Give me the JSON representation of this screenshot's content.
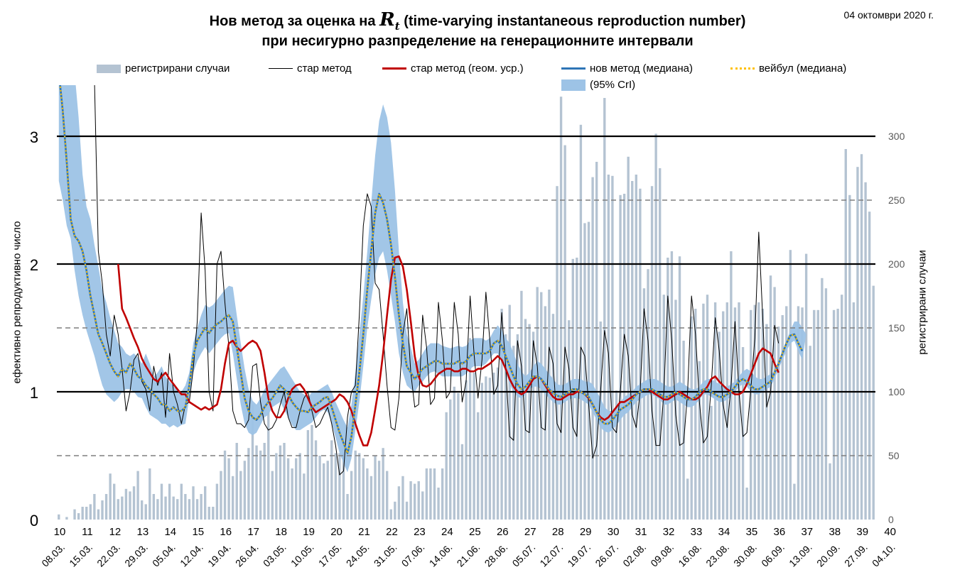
{
  "header": {
    "title_prefix": "Нов метод за оценка на",
    "title_rt": "R",
    "title_rt_sub": "t",
    "title_suffix": "(time-varying instantaneous reproduction number)",
    "title_line2": "при несигурно разпределение на генерационните интервали",
    "date": "04 октомври 2020 г."
  },
  "legend": {
    "cases": "регистрирани случаи",
    "old": "стар метод",
    "old_geo": "стар метод (геом. уср.)",
    "new_median": "нов метод (медиана)",
    "weibull": "вейбул (медиана)",
    "cri": "(95% CrI)"
  },
  "colors": {
    "bars": "#b4c3d2",
    "band": "#9dc3e6",
    "old": "#000000",
    "old_geo": "#c00000",
    "new": "#2e75b6",
    "weibull": "#ffc000"
  },
  "chart_data": {
    "type": "bar+line",
    "title": "Нов метод за оценка на Rt (time-varying instantaneous reproduction number) при несигурно разпределение на генерационните интервали",
    "ylabel_left": "ефективно репродуктивно число",
    "ylabel_right": "регистрирани случаи",
    "ylim_left": [
      0,
      3.4
    ],
    "ylim_right": [
      0,
      340
    ],
    "yticks_left": [
      "0",
      "1",
      "2",
      "3"
    ],
    "yticks_right": [
      "0",
      "50",
      "100",
      "150",
      "200",
      "250",
      "300"
    ],
    "week_labels": [
      "10",
      "11",
      "12",
      "13",
      "14",
      "15",
      "16",
      "17",
      "18",
      "19",
      "20",
      "21",
      "22",
      "23",
      "24",
      "25",
      "26",
      "27",
      "28",
      "29",
      "30",
      "31",
      "32",
      "33",
      "34",
      "35",
      "36",
      "37",
      "38",
      "39",
      "40"
    ],
    "date_labels": [
      "08.03.",
      "15.03.",
      "22.03.",
      "29.03.",
      "05.04.",
      "12.04.",
      "19.04.",
      "26.04.",
      "03.05.",
      "10.05.",
      "17.05.",
      "24.05.",
      "31.05.",
      "07.06.",
      "14.06.",
      "21.06.",
      "28.06.",
      "05.07.",
      "12.07.",
      "19.07.",
      "26.07.",
      "02.08.",
      "09.08.",
      "16.08.",
      "23.08.",
      "30.08.",
      "06.09.",
      "13.09.",
      "20.09.",
      "27.09.",
      "04.10."
    ],
    "cases": [
      4,
      0,
      2,
      0,
      8,
      5,
      10,
      10,
      12,
      20,
      8,
      15,
      20,
      36,
      28,
      16,
      18,
      24,
      22,
      26,
      38,
      15,
      12,
      40,
      20,
      16,
      28,
      18,
      28,
      18,
      16,
      28,
      20,
      16,
      26,
      16,
      20,
      26,
      10,
      10,
      28,
      38,
      54,
      48,
      34,
      60,
      38,
      46,
      56,
      90,
      58,
      54,
      60,
      84,
      38,
      52,
      58,
      60,
      48,
      40,
      48,
      52,
      36,
      70,
      74,
      62,
      50,
      44,
      46,
      62,
      52,
      52,
      56,
      20,
      38,
      54,
      52,
      48,
      40,
      34,
      50,
      46,
      56,
      38,
      8,
      14,
      26,
      34,
      14,
      30,
      28,
      30,
      22,
      40,
      40,
      40,
      25,
      40,
      84,
      94,
      104,
      99,
      59,
      109,
      142,
      115,
      84,
      107,
      112,
      111,
      115,
      119,
      165,
      145,
      168,
      136,
      145,
      179,
      157,
      153,
      147,
      182,
      178,
      167,
      180,
      161,
      261,
      331,
      293,
      156,
      204,
      205,
      309,
      232,
      233,
      268,
      280,
      155,
      330,
      270,
      269,
      101,
      254,
      255,
      284,
      265,
      270,
      259,
      181,
      196,
      261,
      302,
      275,
      176,
      205,
      210,
      172,
      206,
      140,
      32,
      159,
      165,
      124,
      169,
      176,
      89,
      170,
      147,
      163,
      170,
      210,
      166,
      170,
      135,
      25,
      164,
      168,
      170,
      165,
      153,
      191,
      182,
      151,
      160,
      167,
      211,
      28,
      167,
      166,
      208,
      136,
      164,
      164,
      189,
      181,
      44,
      164,
      165,
      176,
      290,
      254,
      170,
      276,
      286,
      264,
      241,
      183
    ],
    "band_upper": [
      3.5,
      3.5,
      3.5,
      3.5,
      3.5,
      3.15,
      2.7,
      2.45,
      2.35,
      2.15,
      1.98,
      1.8,
      1.7,
      1.58,
      1.48,
      1.38,
      1.35,
      1.3,
      1.28,
      1.3,
      1.27,
      1.22,
      1.3,
      1.22,
      1.12,
      1.15,
      1.2,
      1.12,
      1.08,
      1.05,
      1.02,
      1.0,
      1.05,
      1.15,
      1.38,
      1.5,
      1.6,
      1.68,
      1.66,
      1.68,
      1.72,
      1.76,
      1.8,
      1.83,
      1.82,
      1.6,
      1.38,
      1.18,
      1.02,
      0.93,
      0.9,
      0.95,
      1.02,
      1.06,
      1.1,
      1.14,
      1.18,
      1.2,
      1.15,
      1.1,
      1.05,
      1.0,
      0.98,
      0.95,
      1.0,
      1.0,
      1.02,
      1.04,
      1.06,
      1.0,
      0.92,
      0.85,
      0.78,
      0.72,
      0.9,
      1.15,
      1.45,
      1.75,
      2.1,
      2.48,
      2.85,
      3.12,
      3.25,
      3.15,
      2.95,
      2.58,
      2.1,
      1.7,
      1.45,
      1.35,
      1.22,
      1.25,
      1.3,
      1.35,
      1.38,
      1.38,
      1.38,
      1.36,
      1.35,
      1.34,
      1.35,
      1.36,
      1.35,
      1.36,
      1.4,
      1.42,
      1.42,
      1.42,
      1.4,
      1.42,
      1.48,
      1.52,
      1.48,
      1.42,
      1.38,
      1.3,
      1.22,
      1.16,
      1.12,
      1.15,
      1.2,
      1.24,
      1.22,
      1.18,
      1.14,
      1.1,
      1.06,
      1.05,
      1.06,
      1.08,
      1.1,
      1.1,
      1.1,
      1.08,
      1.08,
      1.06,
      1.0,
      0.95,
      0.88,
      0.85,
      0.85,
      0.88,
      0.92,
      0.96,
      0.98,
      1.0,
      1.04,
      1.06,
      1.08,
      1.1,
      1.1,
      1.1,
      1.08,
      1.06,
      1.04,
      1.04,
      1.06,
      1.08,
      1.06,
      1.04,
      1.02,
      1.02,
      1.04,
      1.08,
      1.1,
      1.1,
      1.08,
      1.06,
      1.04,
      1.04,
      1.06,
      1.08,
      1.12,
      1.16,
      1.18,
      1.16,
      1.12,
      1.1,
      1.1,
      1.12,
      1.14,
      1.16,
      1.24,
      1.32,
      1.4,
      1.48,
      1.55,
      1.55,
      1.5,
      1.45
    ],
    "band_lower": [
      2.65,
      2.5,
      2.3,
      2.2,
      1.95,
      1.75,
      1.6,
      1.48,
      1.38,
      1.28,
      1.16,
      1.05,
      0.98,
      0.95,
      0.92,
      0.95,
      1.0,
      1.02,
      1.02,
      1.0,
      0.96,
      0.95,
      0.88,
      0.82,
      0.8,
      0.78,
      0.75,
      0.75,
      0.72,
      0.74,
      0.72,
      0.74,
      0.75,
      0.95,
      1.15,
      1.24,
      1.3,
      1.35,
      1.3,
      1.34,
      1.38,
      1.42,
      1.45,
      1.46,
      1.3,
      1.1,
      0.9,
      0.75,
      0.68,
      0.66,
      0.68,
      0.74,
      0.8,
      0.82,
      0.88,
      0.9,
      0.92,
      0.86,
      0.8,
      0.74,
      0.7,
      0.7,
      0.72,
      0.74,
      0.76,
      0.8,
      0.84,
      0.86,
      0.84,
      0.76,
      0.64,
      0.52,
      0.44,
      0.37,
      0.48,
      0.7,
      0.92,
      1.2,
      1.5,
      1.72,
      1.92,
      2.05,
      2.1,
      1.95,
      1.75,
      1.55,
      1.3,
      1.15,
      1.05,
      1.02,
      1.0,
      1.05,
      1.08,
      1.12,
      1.15,
      1.16,
      1.14,
      1.12,
      1.12,
      1.12,
      1.12,
      1.12,
      1.12,
      1.14,
      1.18,
      1.2,
      1.2,
      1.2,
      1.22,
      1.26,
      1.3,
      1.3,
      1.24,
      1.15,
      1.06,
      1.0,
      0.96,
      0.95,
      0.98,
      1.02,
      1.04,
      1.04,
      1.02,
      0.98,
      0.95,
      0.92,
      0.9,
      0.9,
      0.92,
      0.94,
      0.95,
      0.95,
      0.94,
      0.92,
      0.9,
      0.84,
      0.78,
      0.72,
      0.69,
      0.68,
      0.7,
      0.74,
      0.78,
      0.82,
      0.84,
      0.88,
      0.92,
      0.94,
      0.96,
      0.98,
      0.98,
      0.96,
      0.94,
      0.9,
      0.9,
      0.92,
      0.94,
      0.92,
      0.9,
      0.88,
      0.88,
      0.9,
      0.94,
      0.98,
      0.98,
      0.96,
      0.94,
      0.92,
      0.92,
      0.94,
      0.96,
      1.0,
      1.04,
      1.06,
      1.04,
      1.0,
      0.98,
      0.98,
      1.0,
      1.02,
      1.04,
      1.1,
      1.18,
      1.25,
      1.32,
      1.38,
      1.4,
      1.32,
      1.25
    ],
    "new_median": [
      3.5,
      3.2,
      2.8,
      2.35,
      2.22,
      2.18,
      2.1,
      1.95,
      1.75,
      1.6,
      1.45,
      1.38,
      1.3,
      1.22,
      1.16,
      1.12,
      1.18,
      1.15,
      1.22,
      1.18,
      1.12,
      1.1,
      1.05,
      1.02,
      0.98,
      0.95,
      0.9,
      0.9,
      0.85,
      0.88,
      0.85,
      0.85,
      0.88,
      1.05,
      1.28,
      1.4,
      1.45,
      1.5,
      1.46,
      1.5,
      1.53,
      1.55,
      1.58,
      1.6,
      1.55,
      1.35,
      1.15,
      0.95,
      0.85,
      0.8,
      0.78,
      0.82,
      0.88,
      0.92,
      0.95,
      1.0,
      1.05,
      1.02,
      0.98,
      0.92,
      0.88,
      0.85,
      0.85,
      0.84,
      0.88,
      0.9,
      0.92,
      0.95,
      0.96,
      0.88,
      0.78,
      0.68,
      0.6,
      0.52,
      0.65,
      0.9,
      1.15,
      1.45,
      1.8,
      2.1,
      2.4,
      2.55,
      2.48,
      2.35,
      2.15,
      1.9,
      1.6,
      1.38,
      1.2,
      1.15,
      1.1,
      1.14,
      1.18,
      1.2,
      1.22,
      1.24,
      1.24,
      1.22,
      1.22,
      1.22,
      1.22,
      1.24,
      1.22,
      1.24,
      1.28,
      1.3,
      1.3,
      1.3,
      1.3,
      1.32,
      1.38,
      1.4,
      1.36,
      1.28,
      1.2,
      1.12,
      1.06,
      1.02,
      1.04,
      1.08,
      1.12,
      1.12,
      1.1,
      1.06,
      1.02,
      0.99,
      0.97,
      0.96,
      0.98,
      1.0,
      1.02,
      1.02,
      1.0,
      0.98,
      0.96,
      0.9,
      0.84,
      0.78,
      0.75,
      0.75,
      0.78,
      0.82,
      0.86,
      0.88,
      0.9,
      0.94,
      0.98,
      1.0,
      1.02,
      1.02,
      1.02,
      1.0,
      0.98,
      0.96,
      0.96,
      0.98,
      1.0,
      0.98,
      0.96,
      0.94,
      0.94,
      0.96,
      1.0,
      1.02,
      1.02,
      1.0,
      0.98,
      0.96,
      0.96,
      0.98,
      1.0,
      1.04,
      1.08,
      1.1,
      1.08,
      1.05,
      1.02,
      1.02,
      1.04,
      1.06,
      1.08,
      1.15,
      1.22,
      1.3,
      1.38,
      1.44,
      1.45,
      1.38,
      1.32
    ],
    "old_geo": [
      null,
      null,
      null,
      null,
      null,
      null,
      null,
      null,
      null,
      null,
      null,
      null,
      null,
      null,
      null,
      2.0,
      1.65,
      1.58,
      1.5,
      1.42,
      1.35,
      1.26,
      1.2,
      1.15,
      1.1,
      1.08,
      1.12,
      1.15,
      1.1,
      1.06,
      1.02,
      0.98,
      0.98,
      0.92,
      0.9,
      0.88,
      0.86,
      0.88,
      0.86,
      0.88,
      0.9,
      1.02,
      1.22,
      1.38,
      1.4,
      1.35,
      1.32,
      1.35,
      1.38,
      1.4,
      1.38,
      1.32,
      1.15,
      0.95,
      0.85,
      0.8,
      0.8,
      0.85,
      0.95,
      1.02,
      1.05,
      1.06,
      1.02,
      0.95,
      0.88,
      0.84,
      0.86,
      0.88,
      0.9,
      0.92,
      0.94,
      0.98,
      0.96,
      0.92,
      0.85,
      0.75,
      0.66,
      0.58,
      0.58,
      0.68,
      0.86,
      1.05,
      1.3,
      1.6,
      1.88,
      2.05,
      2.06,
      1.98,
      1.8,
      1.55,
      1.28,
      1.12,
      1.05,
      1.04,
      1.06,
      1.1,
      1.14,
      1.16,
      1.18,
      1.18,
      1.16,
      1.16,
      1.18,
      1.18,
      1.16,
      1.16,
      1.18,
      1.18,
      1.2,
      1.22,
      1.25,
      1.28,
      1.25,
      1.18,
      1.1,
      1.04,
      1.0,
      0.98,
      1.0,
      1.05,
      1.1,
      1.12,
      1.1,
      1.05,
      1.0,
      0.96,
      0.94,
      0.94,
      0.96,
      0.98,
      0.98,
      1.0,
      1.0,
      0.98,
      0.95,
      0.9,
      0.84,
      0.8,
      0.78,
      0.8,
      0.84,
      0.88,
      0.92,
      0.92,
      0.94,
      0.96,
      0.98,
      1.0,
      1.02,
      1.02,
      1.0,
      0.98,
      0.96,
      0.94,
      0.94,
      0.96,
      0.98,
      1.0,
      0.98,
      0.96,
      0.94,
      0.94,
      0.96,
      1.0,
      1.04,
      1.1,
      1.12,
      1.08,
      1.05,
      1.02,
      1.0,
      0.98,
      0.98,
      1.0,
      1.06,
      1.14,
      1.22,
      1.3,
      1.34,
      1.32,
      1.3,
      1.22,
      1.15
    ],
    "old_method": [
      null,
      null,
      null,
      null,
      null,
      null,
      null,
      null,
      null,
      3.45,
      2.1,
      1.85,
      1.45,
      1.28,
      1.6,
      1.45,
      1.18,
      0.85,
      1.0,
      1.25,
      1.3,
      1.08,
      1.02,
      0.85,
      1.2,
      1.05,
      1.15,
      0.8,
      1.3,
      1.0,
      0.9,
      0.75,
      0.9,
      0.92,
      1.18,
      1.55,
      2.4,
      1.95,
      1.0,
      0.85,
      2.0,
      2.1,
      1.7,
      1.35,
      0.85,
      0.75,
      0.75,
      0.72,
      0.78,
      1.2,
      1.22,
      0.92,
      0.75,
      0.7,
      0.72,
      0.78,
      0.9,
      1.0,
      0.8,
      0.72,
      0.72,
      0.85,
      0.95,
      1.0,
      0.85,
      0.72,
      0.75,
      0.82,
      0.88,
      0.75,
      0.58,
      0.35,
      0.38,
      0.8,
      1.0,
      1.05,
      1.6,
      2.3,
      2.55,
      2.45,
      1.85,
      1.8,
      1.45,
      1.05,
      0.72,
      0.7,
      0.95,
      1.45,
      1.65,
      1.15,
      0.88,
      0.9,
      1.6,
      1.35,
      0.9,
      0.95,
      1.7,
      1.4,
      0.95,
      1.0,
      1.7,
      1.45,
      0.92,
      1.08,
      1.75,
      1.3,
      0.95,
      1.25,
      1.78,
      1.4,
      0.98,
      1.05,
      1.62,
      1.2,
      0.65,
      0.62,
      1.4,
      1.2,
      0.7,
      0.68,
      1.4,
      1.2,
      0.72,
      0.7,
      1.35,
      1.22,
      0.75,
      0.68,
      1.35,
      1.18,
      0.72,
      0.65,
      1.35,
      1.28,
      0.9,
      0.48,
      0.58,
      1.0,
      1.48,
      1.3,
      0.72,
      0.68,
      1.0,
      1.45,
      1.28,
      0.82,
      0.72,
      1.0,
      1.65,
      1.4,
      0.85,
      0.58,
      0.58,
      1.0,
      1.75,
      1.4,
      0.82,
      0.58,
      0.6,
      1.0,
      1.75,
      1.45,
      0.92,
      0.6,
      0.65,
      1.05,
      1.58,
      1.32,
      0.9,
      0.72,
      1.05,
      1.55,
      1.0,
      0.65,
      0.68,
      1.02,
      1.42,
      2.25,
      1.58,
      0.88,
      1.0,
      1.52,
      1.38
    ]
  }
}
